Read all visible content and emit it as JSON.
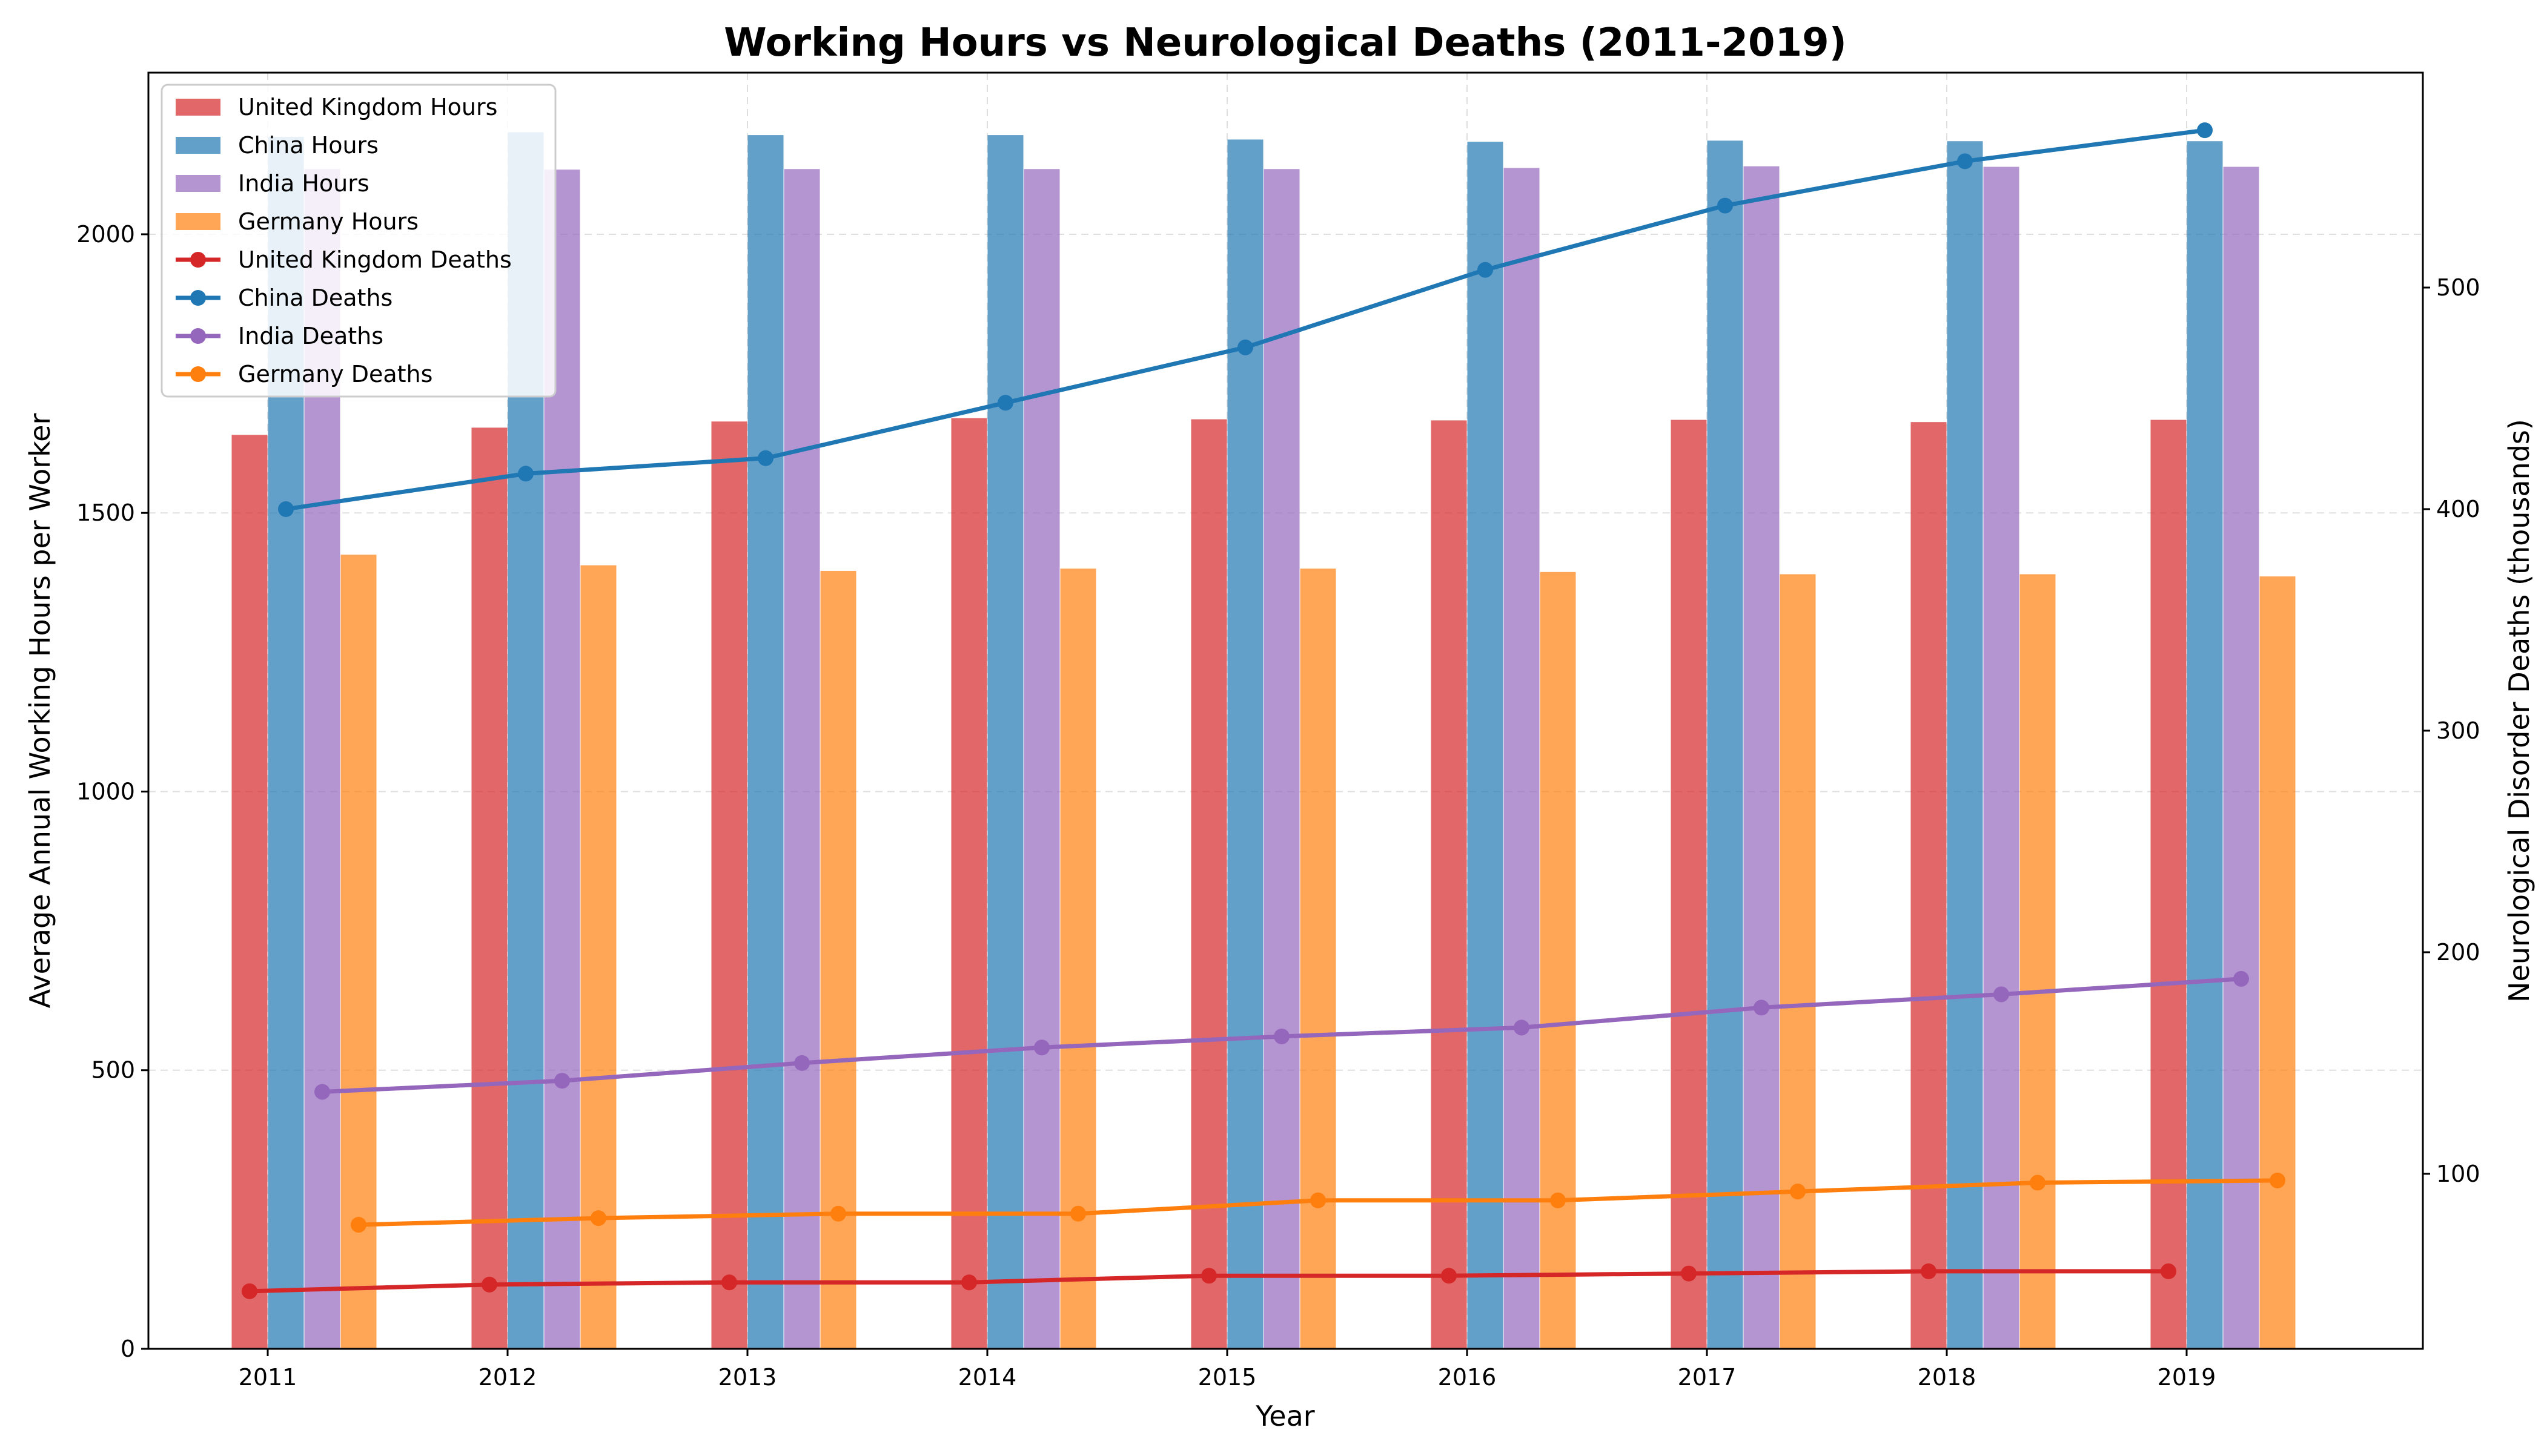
{
  "chart_data": {
    "type": "bar+line",
    "title": "Working Hours vs Neurological Deaths (2011-2019)",
    "xlabel": "Year",
    "ylabel_left": "Average Annual Working Hours per Worker",
    "ylabel_right": "Neurological Disorder Deaths (thousands)",
    "categories": [
      "2011",
      "2012",
      "2013",
      "2014",
      "2015",
      "2016",
      "2017",
      "2018",
      "2019"
    ],
    "ylim_left": [
      0,
      2290
    ],
    "ylim_right": [
      21,
      597
    ],
    "yticks_left": [
      0,
      500,
      1000,
      1500,
      2000
    ],
    "yticks_right": [
      100,
      200,
      300,
      400,
      500
    ],
    "grid": true,
    "legend_position": "upper-left",
    "bar_series": [
      {
        "name": "United Kingdom Hours",
        "color": "#d62728",
        "values": [
          1640,
          1653,
          1664,
          1670,
          1668,
          1666,
          1667,
          1663,
          1667
        ]
      },
      {
        "name": "China Hours",
        "color": "#1f77b4",
        "values": [
          2175,
          2183,
          2178,
          2178,
          2170,
          2166,
          2168,
          2167,
          2167
        ]
      },
      {
        "name": "India Hours",
        "color": "#9467bd",
        "values": [
          2117,
          2116,
          2117,
          2117,
          2117,
          2119,
          2122,
          2121,
          2121
        ]
      },
      {
        "name": "Germany Hours",
        "color": "#ff7f0e",
        "values": [
          1425,
          1406,
          1396,
          1400,
          1400,
          1394,
          1390,
          1390,
          1386
        ]
      }
    ],
    "line_series": [
      {
        "name": "United Kingdom Deaths",
        "color": "#d62728",
        "values": [
          47,
          50,
          51,
          51,
          54,
          54,
          55,
          56,
          56
        ]
      },
      {
        "name": "China Deaths",
        "color": "#1f77b4",
        "values": [
          400,
          416,
          423,
          448,
          473,
          508,
          537,
          557,
          571
        ]
      },
      {
        "name": "India Deaths",
        "color": "#9467bd",
        "values": [
          137,
          142,
          150,
          157,
          162,
          166,
          175,
          181,
          188
        ]
      },
      {
        "name": "Germany Deaths",
        "color": "#ff7f0e",
        "values": [
          77,
          80,
          82,
          82,
          88,
          88,
          92,
          96,
          97
        ]
      }
    ]
  }
}
